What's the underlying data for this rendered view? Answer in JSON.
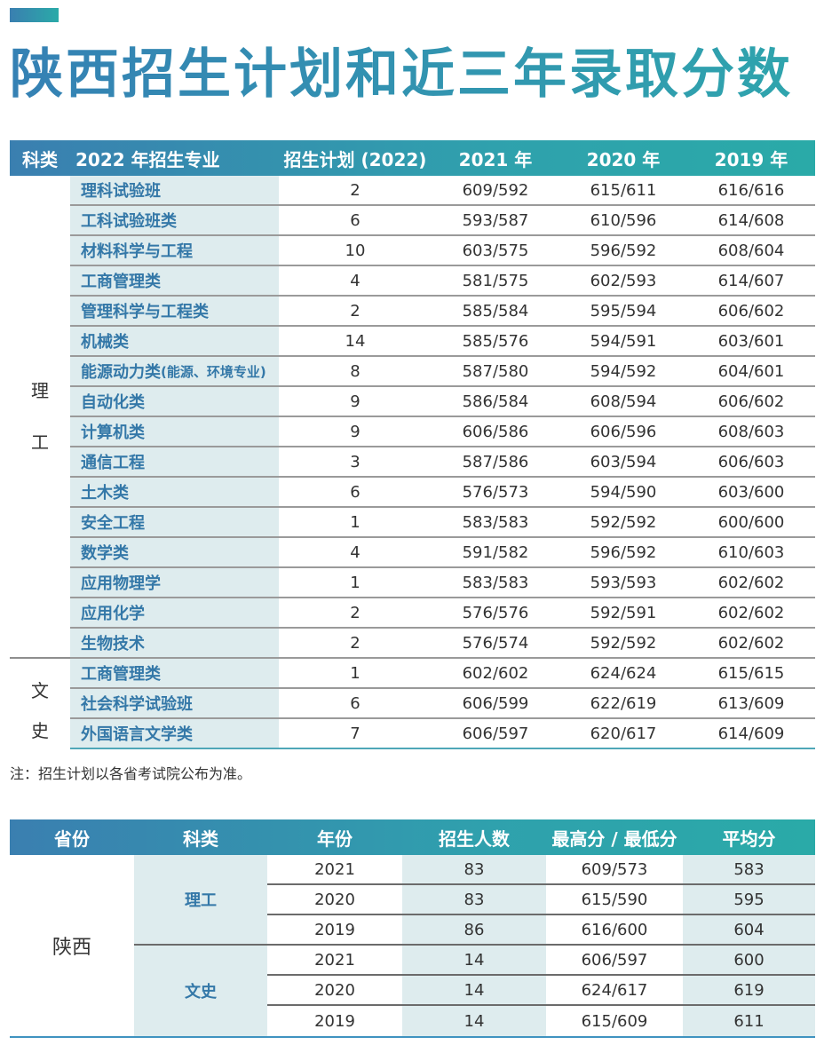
{
  "page": {
    "title": "陕西招生计划和近三年录取分数",
    "accent_color": "#3a7fb0",
    "accent_color_end": "#2aaaa8"
  },
  "table1": {
    "headers": {
      "category": "科类",
      "major": "2022 年招生专业",
      "plan": "招生计划 (2022)",
      "y2021": "2021 年",
      "y2020": "2020 年",
      "y2019": "2019 年"
    },
    "groups": [
      {
        "category_chars": [
          "理",
          "工"
        ],
        "category": "理工",
        "rows": [
          {
            "major": "理科试验班",
            "plan": "2",
            "y2021": "609/592",
            "y2020": "615/611",
            "y2019": "616/616"
          },
          {
            "major": "工科试验班类",
            "plan": "6",
            "y2021": "593/587",
            "y2020": "610/596",
            "y2019": "614/608"
          },
          {
            "major": "材料科学与工程",
            "plan": "10",
            "y2021": "603/575",
            "y2020": "596/592",
            "y2019": "608/604"
          },
          {
            "major": "工商管理类",
            "plan": "4",
            "y2021": "581/575",
            "y2020": "602/593",
            "y2019": "614/607"
          },
          {
            "major": "管理科学与工程类",
            "plan": "2",
            "y2021": "585/584",
            "y2020": "595/594",
            "y2019": "606/602"
          },
          {
            "major": "机械类",
            "plan": "14",
            "y2021": "585/576",
            "y2020": "594/591",
            "y2019": "603/601"
          },
          {
            "major": "能源动力类",
            "major_note": "(能源、环境专业)",
            "plan": "8",
            "y2021": "587/580",
            "y2020": "594/592",
            "y2019": "604/601"
          },
          {
            "major": "自动化类",
            "plan": "9",
            "y2021": "586/584",
            "y2020": "608/594",
            "y2019": "606/602"
          },
          {
            "major": "计算机类",
            "plan": "9",
            "y2021": "606/586",
            "y2020": "606/596",
            "y2019": "608/603"
          },
          {
            "major": "通信工程",
            "plan": "3",
            "y2021": "587/586",
            "y2020": "603/594",
            "y2019": "606/603"
          },
          {
            "major": "土木类",
            "plan": "6",
            "y2021": "576/573",
            "y2020": "594/590",
            "y2019": "603/600"
          },
          {
            "major": "安全工程",
            "plan": "1",
            "y2021": "583/583",
            "y2020": "592/592",
            "y2019": "600/600"
          },
          {
            "major": "数学类",
            "plan": "4",
            "y2021": "591/582",
            "y2020": "596/592",
            "y2019": "610/603"
          },
          {
            "major": "应用物理学",
            "plan": "1",
            "y2021": "583/583",
            "y2020": "593/593",
            "y2019": "602/602"
          },
          {
            "major": "应用化学",
            "plan": "2",
            "y2021": "576/576",
            "y2020": "592/591",
            "y2019": "602/602"
          },
          {
            "major": "生物技术",
            "plan": "2",
            "y2021": "576/574",
            "y2020": "592/592",
            "y2019": "602/602"
          }
        ]
      },
      {
        "category_chars": [
          "文",
          "史"
        ],
        "category": "文史",
        "rows": [
          {
            "major": "工商管理类",
            "plan": "1",
            "y2021": "602/602",
            "y2020": "624/624",
            "y2019": "615/615"
          },
          {
            "major": "社会科学试验班",
            "plan": "6",
            "y2021": "606/599",
            "y2020": "622/619",
            "y2019": "613/609"
          },
          {
            "major": "外国语言文学类",
            "plan": "7",
            "y2021": "606/597",
            "y2020": "620/617",
            "y2019": "614/609"
          }
        ]
      }
    ],
    "note": "注：招生计划以各省考试院公布为准。"
  },
  "table2": {
    "headers": {
      "province": "省份",
      "category": "科类",
      "year": "年份",
      "enrolled": "招生人数",
      "score": "最高分 / 最低分",
      "average": "平均分"
    },
    "province": "陕西",
    "groups": [
      {
        "category": "理工",
        "rows": [
          {
            "year": "2021",
            "enrolled": "83",
            "score": "609/573",
            "average": "583"
          },
          {
            "year": "2020",
            "enrolled": "83",
            "score": "615/590",
            "average": "595"
          },
          {
            "year": "2019",
            "enrolled": "86",
            "score": "616/600",
            "average": "604"
          }
        ]
      },
      {
        "category": "文史",
        "rows": [
          {
            "year": "2021",
            "enrolled": "14",
            "score": "606/597",
            "average": "600"
          },
          {
            "year": "2020",
            "enrolled": "14",
            "score": "624/617",
            "average": "619"
          },
          {
            "year": "2019",
            "enrolled": "14",
            "score": "615/609",
            "average": "611"
          }
        ]
      }
    ]
  }
}
